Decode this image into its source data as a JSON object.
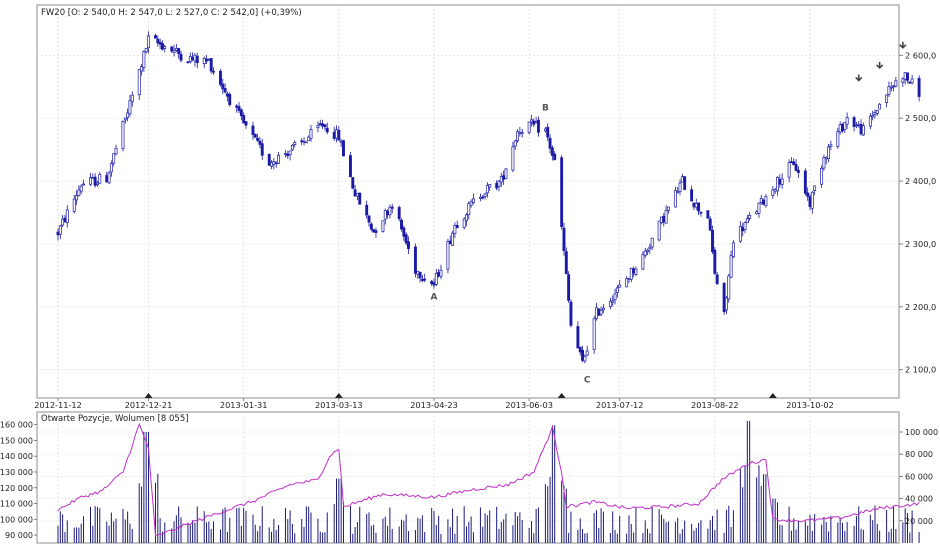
{
  "chart_data": [
    {
      "type": "candlestick",
      "title": "FW20 [O: 2 540,0  H: 2 547,0  L: 2 527,0  C: 2 542,0] (+0,39%)",
      "ohlc": {
        "open": 2540,
        "high": 2547,
        "low": 2527,
        "close": 2542,
        "change_pct": 0.39
      },
      "x_tick_labels": [
        "2012-11-12",
        "2012-12-21",
        "2013-01-31",
        "2013-03-13",
        "2013-04-23",
        "2013-06-03",
        "2013-07-12",
        "2013-08-22",
        "2013-10-02"
      ],
      "y_tick_labels": [
        "2 600,0",
        "2 500,0",
        "2 400,0",
        "2 300,0",
        "2 200,0",
        "2 100,0"
      ],
      "ylim": [
        2055,
        2680
      ],
      "grid": true,
      "colors": {
        "candle": "#1a1aa6",
        "grid": "#d8d8d8",
        "arrow": "#444444"
      },
      "rollover_markers": [
        "2012-12-21",
        "2013-03-13",
        "2013-06-17",
        "2013-09-16"
      ],
      "annotations": [
        {
          "label": "A",
          "date": "2013-04-23",
          "price": 2212
        },
        {
          "label": "B",
          "date": "2013-06-10",
          "price": 2512
        },
        {
          "label": "C",
          "date": "2013-06-28",
          "price": 2080
        }
      ],
      "arrow_markers": [
        {
          "date": "2013-10-23",
          "price": 2560
        },
        {
          "date": "2013-11-01",
          "price": 2580
        },
        {
          "date": "2013-11-11",
          "price": 2612
        }
      ],
      "price_path": [
        [
          "2012-11-12",
          2318
        ],
        [
          "2012-11-22",
          2395
        ],
        [
          "2012-12-03",
          2405
        ],
        [
          "2012-12-12",
          2510
        ],
        [
          "2012-12-21",
          2625
        ],
        [
          "2012-12-28",
          2615
        ],
        [
          "2013-01-07",
          2595
        ],
        [
          "2013-01-16",
          2590
        ],
        [
          "2013-01-31",
          2490
        ],
        [
          "2013-02-11",
          2430
        ],
        [
          "2013-02-25",
          2460
        ],
        [
          "2013-03-06",
          2490
        ],
        [
          "2013-03-13",
          2470
        ],
        [
          "2013-03-20",
          2380
        ],
        [
          "2013-03-28",
          2320
        ],
        [
          "2013-04-05",
          2365
        ],
        [
          "2013-04-15",
          2260
        ],
        [
          "2013-04-23",
          2235
        ],
        [
          "2013-05-02",
          2330
        ],
        [
          "2013-05-13",
          2380
        ],
        [
          "2013-05-22",
          2400
        ],
        [
          "2013-05-29",
          2480
        ],
        [
          "2013-06-03",
          2490
        ],
        [
          "2013-06-10",
          2480
        ],
        [
          "2013-06-14",
          2430
        ],
        [
          "2013-06-17",
          2325
        ],
        [
          "2013-06-21",
          2170
        ],
        [
          "2013-06-26",
          2110
        ],
        [
          "2013-07-02",
          2190
        ],
        [
          "2013-07-12",
          2230
        ],
        [
          "2013-07-22",
          2280
        ],
        [
          "2013-08-01",
          2350
        ],
        [
          "2013-08-08",
          2400
        ],
        [
          "2013-08-14",
          2360
        ],
        [
          "2013-08-19",
          2345
        ],
        [
          "2013-08-22",
          2255
        ],
        [
          "2013-08-26",
          2185
        ],
        [
          "2013-08-30",
          2310
        ],
        [
          "2013-09-06",
          2340
        ],
        [
          "2013-09-16",
          2390
        ],
        [
          "2013-09-25",
          2430
        ],
        [
          "2013-10-02",
          2365
        ],
        [
          "2013-10-08",
          2440
        ],
        [
          "2013-10-18",
          2500
        ],
        [
          "2013-10-25",
          2480
        ],
        [
          "2013-11-04",
          2540
        ],
        [
          "2013-11-11",
          2570
        ],
        [
          "2013-11-18",
          2542
        ]
      ]
    },
    {
      "type": "bar_line",
      "title": "Otwarte Pozycje, Wolumen [8 055]",
      "left_axis": {
        "name": "Otwarte Pozycje",
        "tick_labels": [
          "160 000",
          "150 000",
          "140 000",
          "130 000",
          "120 000",
          "110 000",
          "100 000",
          "90 000"
        ],
        "ylim": [
          85000,
          168000
        ]
      },
      "right_axis": {
        "name": "Wolumen",
        "tick_labels": [
          "100 000",
          "80 000",
          "60 000",
          "40 000",
          "20 000"
        ],
        "ylim": [
          0,
          118000
        ]
      },
      "colors": {
        "volume_bar": "#1a1a7a",
        "open_interest_line": "#c030c8"
      },
      "open_interest_path": [
        [
          "2012-11-12",
          106000
        ],
        [
          "2012-11-22",
          114000
        ],
        [
          "2012-12-01",
          118000
        ],
        [
          "2012-12-10",
          130000
        ],
        [
          "2012-12-17",
          160000
        ],
        [
          "2012-12-21",
          145000
        ],
        [
          "2012-12-24",
          89000
        ],
        [
          "2013-01-07",
          97000
        ],
        [
          "2013-01-20",
          104000
        ],
        [
          "2013-02-05",
          112000
        ],
        [
          "2013-02-20",
          122000
        ],
        [
          "2013-03-04",
          125000
        ],
        [
          "2013-03-09",
          140000
        ],
        [
          "2013-03-13",
          145000
        ],
        [
          "2013-03-15",
          108000
        ],
        [
          "2013-04-01",
          116000
        ],
        [
          "2013-04-23",
          114000
        ],
        [
          "2013-05-10",
          119000
        ],
        [
          "2013-05-25",
          122000
        ],
        [
          "2013-06-05",
          130000
        ],
        [
          "2013-06-13",
          158000
        ],
        [
          "2013-06-17",
          130000
        ],
        [
          "2013-06-19",
          108000
        ],
        [
          "2013-07-01",
          111000
        ],
        [
          "2013-07-15",
          107000
        ],
        [
          "2013-08-01",
          108000
        ],
        [
          "2013-08-15",
          110000
        ],
        [
          "2013-08-25",
          125000
        ],
        [
          "2013-09-05",
          135000
        ],
        [
          "2013-09-13",
          138000
        ],
        [
          "2013-09-16",
          100000
        ],
        [
          "2013-09-30",
          99000
        ],
        [
          "2013-10-15",
          101000
        ],
        [
          "2013-11-01",
          107000
        ],
        [
          "2013-11-18",
          110000
        ]
      ],
      "volume_spikes": [
        [
          "2012-12-20",
          100000
        ],
        [
          "2013-03-13",
          58000
        ],
        [
          "2013-06-14",
          106000
        ],
        [
          "2013-09-06",
          110000
        ],
        [
          "2013-09-13",
          62000
        ]
      ]
    }
  ]
}
